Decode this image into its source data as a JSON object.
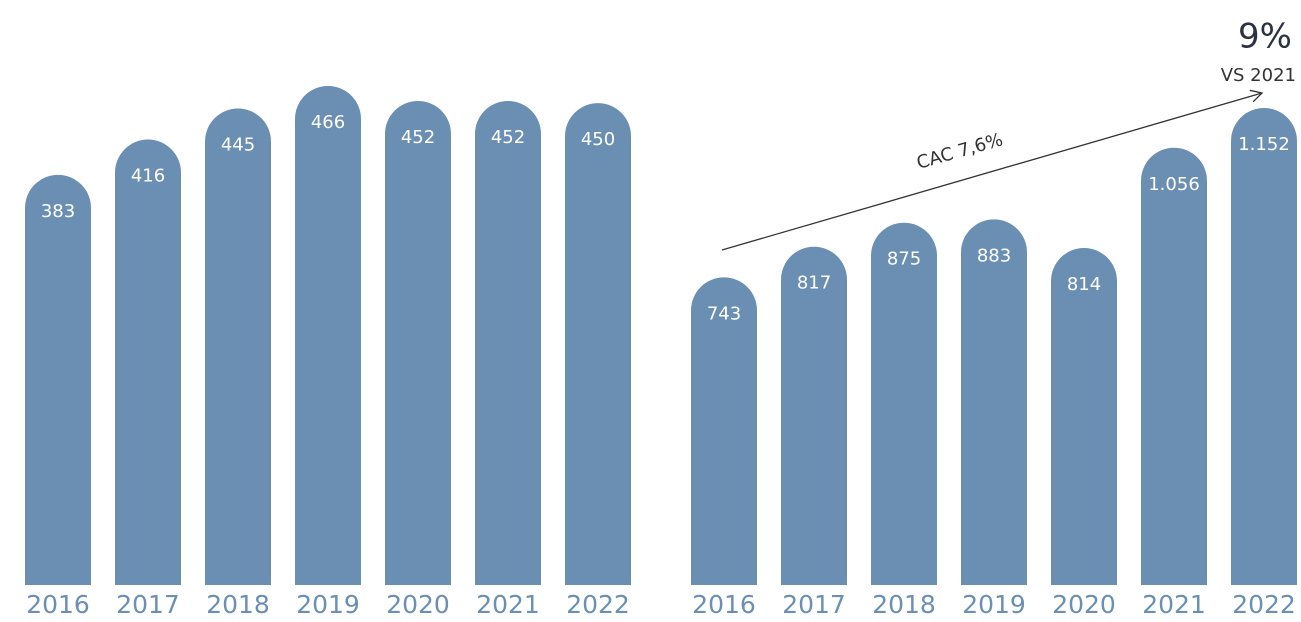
{
  "chart_data": [
    {
      "type": "bar",
      "categories": [
        "2016",
        "2017",
        "2018",
        "2019",
        "2020",
        "2021",
        "2022"
      ],
      "values": [
        383,
        416,
        445,
        466,
        452,
        452,
        450
      ],
      "color": "#6b8fb3"
    },
    {
      "type": "bar",
      "categories": [
        "2016",
        "2017",
        "2018",
        "2019",
        "2020",
        "2021",
        "2022"
      ],
      "values": [
        743,
        817,
        875,
        883,
        814,
        1056,
        1152
      ],
      "value_labels": [
        "743",
        "817",
        "875",
        "883",
        "814",
        "1.056",
        "1.152"
      ],
      "color": "#6b8fb3",
      "annotations": [
        "CAC 7,6%",
        "9%",
        "VS 2021"
      ]
    }
  ]
}
